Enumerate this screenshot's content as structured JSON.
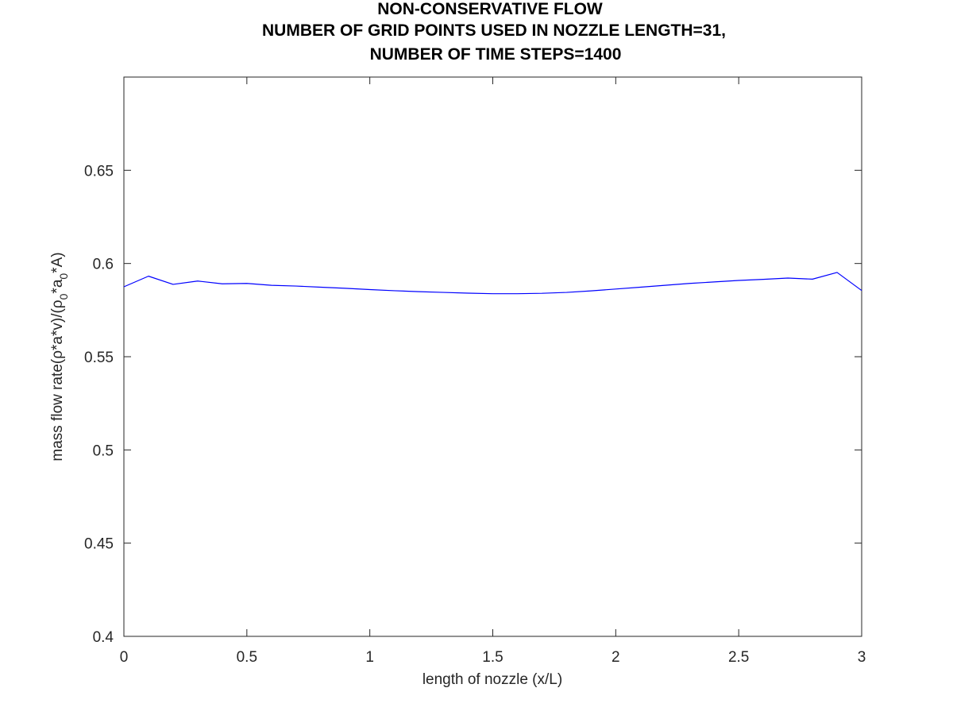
{
  "chart_data": {
    "type": "line",
    "title": [
      "NON-CONSERVATIVE FLOW",
      "NUMBER OF GRID POINTS USED IN NOZZLE LENGTH=31,",
      "NUMBER OF TIME STEPS=1400"
    ],
    "xlabel": "length of nozzle (x/L)",
    "ylabel": {
      "prefix": "mass flow rate(ρ*a*v)/(ρ",
      "sub1": "0",
      "middle": "*a",
      "sub2": "0",
      "suffix": "*A)"
    },
    "xlim": [
      0,
      3
    ],
    "ylim": [
      0.4,
      0.7
    ],
    "xticks": [
      0,
      0.5,
      1,
      1.5,
      2,
      2.5,
      3
    ],
    "xtick_labels": [
      "0",
      "0.5",
      "1",
      "1.5",
      "2",
      "2.5",
      "3"
    ],
    "yticks": [
      0.4,
      0.45,
      0.5,
      0.55,
      0.6,
      0.65
    ],
    "ytick_labels": [
      "0.4",
      "0.45",
      "0.5",
      "0.55",
      "0.6",
      "0.65"
    ],
    "grid": false,
    "box": true,
    "series": [
      {
        "color": "#0000ff",
        "x": [
          0,
          0.1,
          0.2,
          0.3,
          0.4,
          0.5,
          0.6,
          0.7,
          0.8,
          0.9,
          1.0,
          1.1,
          1.2,
          1.3,
          1.4,
          1.5,
          1.6,
          1.7,
          1.8,
          1.9,
          2.0,
          2.1,
          2.2,
          2.3,
          2.4,
          2.5,
          2.6,
          2.7,
          2.8,
          2.9,
          3.0
        ],
        "y": [
          0.5875,
          0.5932,
          0.5888,
          0.5906,
          0.5891,
          0.5893,
          0.5883,
          0.5879,
          0.5873,
          0.5867,
          0.586,
          0.5854,
          0.5849,
          0.5845,
          0.5841,
          0.5838,
          0.5838,
          0.584,
          0.5845,
          0.5853,
          0.5863,
          0.5873,
          0.5883,
          0.5893,
          0.5901,
          0.5909,
          0.5915,
          0.5922,
          0.5916,
          0.5952,
          0.5855
        ]
      }
    ]
  }
}
